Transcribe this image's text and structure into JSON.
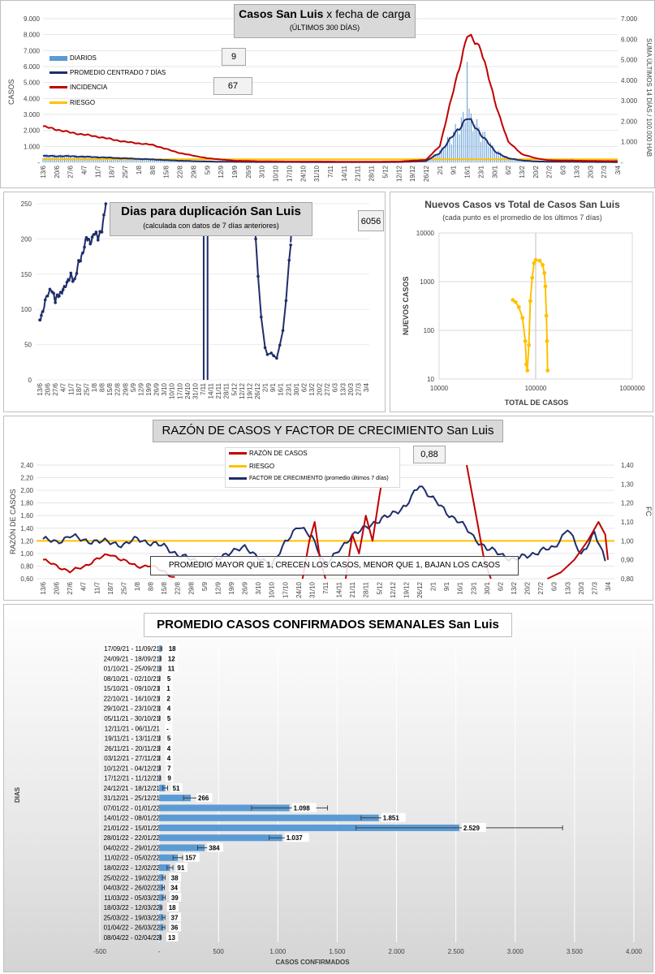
{
  "colors": {
    "diarios": "#5b9bd5",
    "promedio": "#1f2d6b",
    "incidencia": "#c00000",
    "riesgo": "#ffc000",
    "factor": "#1f2d6b",
    "scatter": "#ffc000",
    "bar": "#5b9bd5"
  },
  "top": {
    "title_bold": "Casos San Luis",
    "title_rest": " x fecha de carga",
    "subtitle": "(ÚLTIMOS 300 DÍAS)",
    "ylabel_left": "CASOS",
    "ylabel_right": "SUMA ÚLTIMOS 14 DÍAS / 100.000 HAB",
    "value_box_1": "9",
    "value_box_2": "67",
    "legend": [
      "DIARIOS",
      "PROMEDIO CENTRADO 7 DÍAS",
      "INCIDENCIA",
      "RIESGO"
    ],
    "left_ticks": [
      "-",
      "1.000",
      "2.000",
      "3.000",
      "4.000",
      "5.000",
      "6.000",
      "7.000",
      "8.000",
      "9.000"
    ],
    "right_ticks": [
      "-",
      "1.000",
      "2.000",
      "3.000",
      "4.000",
      "5.000",
      "6.000",
      "7.000"
    ],
    "x_ticks": [
      "13/6",
      "20/6",
      "27/6",
      "4/7",
      "11/7",
      "18/7",
      "25/7",
      "1/8",
      "8/8",
      "15/8",
      "22/8",
      "29/8",
      "5/9",
      "12/9",
      "19/9",
      "26/9",
      "3/10",
      "10/10",
      "17/10",
      "24/10",
      "31/10",
      "7/11",
      "14/11",
      "21/11",
      "28/11",
      "5/12",
      "12/12",
      "19/12",
      "26/12",
      "2/1",
      "9/1",
      "16/1",
      "23/1",
      "30/1",
      "6/2",
      "13/2",
      "20/2",
      "27/2",
      "6/3",
      "13/3",
      "20/3",
      "27/3",
      "3/4"
    ]
  },
  "dup": {
    "title": "Dias para duplicación San Luis",
    "subtitle": "(calculada con datos de 7 días anteriores)",
    "value_box": "6056",
    "y_ticks": [
      "0",
      "50",
      "100",
      "150",
      "200",
      "250"
    ],
    "x_ticks": [
      "13/6",
      "20/6",
      "27/6",
      "4/7",
      "11/7",
      "18/7",
      "25/7",
      "1/8",
      "8/8",
      "15/8",
      "22/8",
      "29/8",
      "5/9",
      "12/9",
      "19/9",
      "26/9",
      "3/10",
      "10/10",
      "17/10",
      "24/10",
      "31/10",
      "7/11",
      "14/11",
      "21/11",
      "28/11",
      "5/12",
      "12/12",
      "19/12",
      "26/12",
      "2/1",
      "9/1",
      "16/1",
      "23/1",
      "30/1",
      "6/2",
      "13/2",
      "20/2",
      "27/2",
      "6/3",
      "13/3",
      "20/3",
      "27/3",
      "3/4"
    ]
  },
  "nuevos": {
    "title": "Nuevos Casos vs Total de Casos San Luis",
    "subtitle": "(cada punto es el promedio de los últimos 7 días)",
    "xlabel": "TOTAL DE CASOS",
    "ylabel": "NUEVOS CASOS",
    "y_ticks": [
      "10",
      "100",
      "1000",
      "10000"
    ],
    "x_ticks": [
      "10000",
      "100000",
      "1000000"
    ]
  },
  "razon": {
    "title_bold": "RAZÓN DE CASOS Y FACTOR DE CRECIMIENTO",
    "title_rest": " San Luis",
    "value_box": "0,88",
    "ylabel_left": "RAZÓN DE CASOS",
    "ylabel_right": "FC",
    "legend": [
      "RAZÓN DE CASOS",
      "RIESGO",
      "FACTOR DE CRECIMIENTO (promedio últimos 7 días)"
    ],
    "note": "PROMEDIO MAYOR QUE 1, CRECEN LOS CASOS, MENOR QUE 1, BAJAN LOS CASOS",
    "left_ticks": [
      "0,60",
      "0,80",
      "1,00",
      "1,20",
      "1,40",
      "1,60",
      "1,80",
      "2,00",
      "2,20",
      "2,40"
    ],
    "right_ticks": [
      "0,80",
      "0,90",
      "1,00",
      "1,10",
      "1,20",
      "1,30",
      "1,40"
    ],
    "x_ticks": [
      "13/6",
      "20/6",
      "27/6",
      "4/7",
      "11/7",
      "18/7",
      "25/7",
      "1/8",
      "8/8",
      "15/8",
      "22/8",
      "29/8",
      "5/9",
      "12/9",
      "19/9",
      "26/9",
      "3/10",
      "10/10",
      "17/10",
      "24/10",
      "31/10",
      "7/11",
      "14/11",
      "21/11",
      "28/11",
      "5/12",
      "12/12",
      "19/12",
      "26/12",
      "2/1",
      "9/1",
      "16/1",
      "23/1",
      "30/1",
      "6/2",
      "13/2",
      "20/2",
      "27/2",
      "6/3",
      "13/3",
      "20/3",
      "27/3",
      "3/4"
    ]
  },
  "chart_data": [
    {
      "type": "line",
      "title": "Casos San Luis x fecha de carga",
      "subtitle": "(ÚLTIMOS 300 DÍAS)",
      "xlabel": "",
      "ylabel": "CASOS",
      "y2label": "SUMA ÚLTIMOS 14 DÍAS / 100.000 HAB",
      "ylim": [
        0,
        9000
      ],
      "y2lim": [
        0,
        7000
      ],
      "x": [
        "13/6",
        "27/6",
        "11/7",
        "25/7",
        "8/8",
        "22/8",
        "5/9",
        "19/9",
        "3/10",
        "17/10",
        "31/10",
        "14/11",
        "28/11",
        "12/12",
        "26/12",
        "2/1",
        "9/1",
        "16/1",
        "23/1",
        "30/1",
        "6/2",
        "13/2",
        "20/2",
        "27/2",
        "13/3",
        "27/3",
        "3/4"
      ],
      "series": [
        {
          "name": "PROMEDIO CENTRADO 7 DÍAS",
          "axis": "left",
          "values": [
            400,
            380,
            320,
            250,
            180,
            100,
            50,
            30,
            20,
            20,
            15,
            10,
            10,
            20,
            80,
            600,
            1700,
            2800,
            1800,
            700,
            250,
            120,
            60,
            40,
            30,
            20,
            15
          ]
        },
        {
          "name": "INCIDENCIA",
          "axis": "right",
          "values": [
            1750,
            1450,
            1250,
            1000,
            850,
            450,
            200,
            80,
            50,
            40,
            40,
            30,
            30,
            40,
            120,
            800,
            3500,
            6200,
            5600,
            3000,
            1000,
            400,
            200,
            100,
            80,
            60,
            60
          ]
        },
        {
          "name": "RIESGO",
          "axis": "right",
          "values": [
            150,
            150,
            150,
            150,
            150,
            150,
            150,
            150,
            150,
            150,
            150,
            150,
            150,
            150,
            150,
            150,
            150,
            150,
            150,
            150,
            150,
            150,
            150,
            150,
            150,
            150,
            150
          ]
        }
      ]
    },
    {
      "type": "line",
      "title": "Dias para duplicación San Luis",
      "subtitle": "(calculada con datos de 7 días anteriores)",
      "ylim": [
        0,
        250
      ],
      "x": [
        "13/6",
        "16/6",
        "20/6",
        "24/6",
        "27/6",
        "1/7",
        "4/7",
        "8/7",
        "11/7",
        "15/7",
        "18/7",
        "22/7",
        "25/7",
        "28/7",
        "1/8",
        "4/8",
        "8/8",
        "11/8"
      ],
      "series": [
        {
          "name": "",
          "values": [
            85,
            100,
            120,
            130,
            112,
            120,
            130,
            135,
            150,
            140,
            165,
            180,
            200,
            195,
            210,
            200,
            215,
            250
          ]
        }
      ]
    },
    {
      "type": "scatter",
      "title": "Nuevos Casos vs Total de Casos San Luis",
      "xlabel": "TOTAL DE CASOS",
      "ylabel": "NUEVOS CASOS",
      "xlim": [
        10000,
        1000000
      ],
      "ylim": [
        10,
        10000
      ],
      "log_scale": true,
      "points": [
        [
          58000,
          420
        ],
        [
          62000,
          380
        ],
        [
          67000,
          300
        ],
        [
          73000,
          180
        ],
        [
          78000,
          60
        ],
        [
          80000,
          20
        ],
        [
          82000,
          15
        ],
        [
          85000,
          50
        ],
        [
          88000,
          400
        ],
        [
          92000,
          1200
        ],
        [
          96000,
          2400
        ],
        [
          100000,
          2800
        ],
        [
          110000,
          2700
        ],
        [
          118000,
          2200
        ],
        [
          123000,
          1500
        ],
        [
          126000,
          800
        ],
        [
          129000,
          200
        ],
        [
          131000,
          60
        ],
        [
          133000,
          15
        ]
      ]
    },
    {
      "type": "bar",
      "title": "PROMEDIO CASOS CONFIRMADOS SEMANALES San Luis",
      "xlabel": "CASOS CONFIRMADOS",
      "ylabel": "DIAS",
      "xlim": [
        -500,
        4000
      ],
      "categories": [
        "17/09/21 - 11/09/21",
        "24/09/21 - 18/09/21",
        "01/10/21 - 25/09/21",
        "08/10/21 - 02/10/21",
        "15/10/21 - 09/10/21",
        "22/10/21 - 16/10/21",
        "29/10/21 - 23/10/21",
        "05/11/21 - 30/10/21",
        "12/11/21 - 06/11/21",
        "19/11/21 - 13/11/21",
        "26/11/21 - 20/11/21",
        "03/12/21 - 27/11/21",
        "10/12/21 - 04/12/21",
        "17/12/21 - 11/12/21",
        "24/12/21 - 18/12/21",
        "31/12/21 - 25/12/21",
        "07/01/22 - 01/01/22",
        "14/01/22 - 08/01/22",
        "21/01/22 - 15/01/22",
        "28/01/22 - 22/01/22",
        "04/02/22 - 29/01/22",
        "11/02/22 - 05/02/22",
        "18/02/22 - 12/02/22",
        "25/02/22 - 19/02/22",
        "04/03/22 - 26/02/22",
        "11/03/22 - 05/03/22",
        "18/03/22 - 12/03/22",
        "25/03/22 - 19/03/22",
        "01/04/22 - 26/03/22",
        "08/04/22 - 02/04/22"
      ],
      "values": [
        18,
        12,
        11,
        5,
        1,
        2,
        4,
        5,
        0,
        5,
        4,
        4,
        7,
        9,
        51,
        266,
        1098,
        1851,
        2529,
        1037,
        384,
        157,
        91,
        38,
        34,
        39,
        18,
        37,
        36,
        13
      ],
      "value_labels": [
        "18",
        "12",
        "11",
        "5",
        "1",
        "2",
        "4",
        "5",
        "-",
        "5",
        "4",
        "4",
        "7",
        "9",
        "51",
        "266",
        "1.098",
        "1.851",
        "2.529",
        "1.037",
        "384",
        "157",
        "91",
        "38",
        "34",
        "39",
        "18",
        "37",
        "36",
        "13"
      ],
      "errors": [
        5,
        4,
        4,
        2,
        1,
        1,
        2,
        2,
        0,
        2,
        2,
        2,
        3,
        3,
        20,
        60,
        320,
        150,
        870,
        110,
        60,
        40,
        25,
        12,
        10,
        12,
        6,
        12,
        12,
        4
      ],
      "x_ticks": [
        "-500",
        "-",
        "500",
        "1.000",
        "1.500",
        "2.000",
        "2.500",
        "3.000",
        "3.500",
        "4.000"
      ]
    }
  ]
}
